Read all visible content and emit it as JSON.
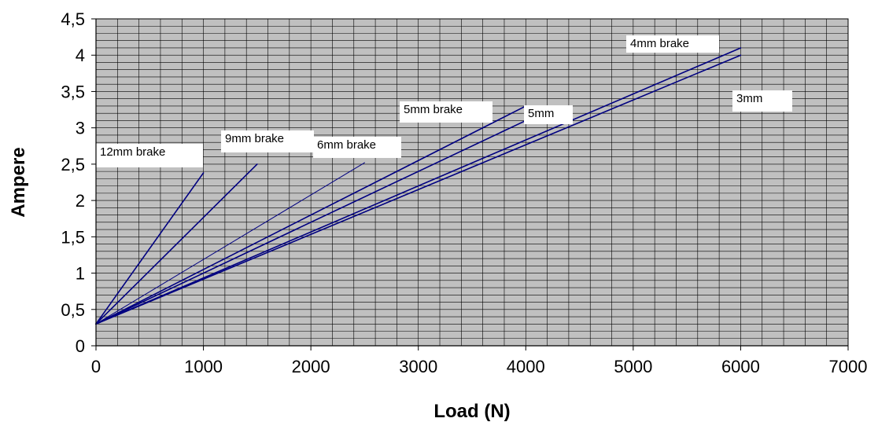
{
  "chart_data": {
    "type": "line",
    "title": "",
    "xlabel": "Load (N)",
    "ylabel": "Ampere",
    "xlim": [
      0,
      7000
    ],
    "ylim": [
      0,
      4.5
    ],
    "x_ticks": [
      0,
      1000,
      2000,
      3000,
      4000,
      5000,
      6000,
      7000
    ],
    "x_tick_labels": [
      "0",
      "1000",
      "2000",
      "3000",
      "4000",
      "5000",
      "6000",
      "7000"
    ],
    "y_ticks": [
      0,
      0.5,
      1,
      1.5,
      2,
      2.5,
      3,
      3.5,
      4,
      4.5
    ],
    "y_tick_labels": [
      "0",
      "0,5",
      "1",
      "1,5",
      "2",
      "2,5",
      "3",
      "3,5",
      "4",
      "4,5"
    ],
    "grid": true,
    "plot_background": "#c0c0c0",
    "line_color": "#000080",
    "series": [
      {
        "name": "12mm brake",
        "x": [
          0,
          1000
        ],
        "y": [
          0.3,
          2.38
        ]
      },
      {
        "name": "9mm brake",
        "x": [
          0,
          1500
        ],
        "y": [
          0.3,
          2.5
        ]
      },
      {
        "name": "6mm brake",
        "x": [
          0,
          2500
        ],
        "y": [
          0.3,
          2.52
        ]
      },
      {
        "name": "5mm brake",
        "x": [
          0,
          4000
        ],
        "y": [
          0.3,
          3.3
        ]
      },
      {
        "name": "5mm",
        "x": [
          0,
          4000
        ],
        "y": [
          0.3,
          3.1
        ]
      },
      {
        "name": "4mm brake",
        "x": [
          0,
          6000
        ],
        "y": [
          0.3,
          4.1
        ]
      },
      {
        "name": "3mm",
        "x": [
          0,
          6000
        ],
        "y": [
          0.3,
          4.0
        ]
      }
    ]
  }
}
